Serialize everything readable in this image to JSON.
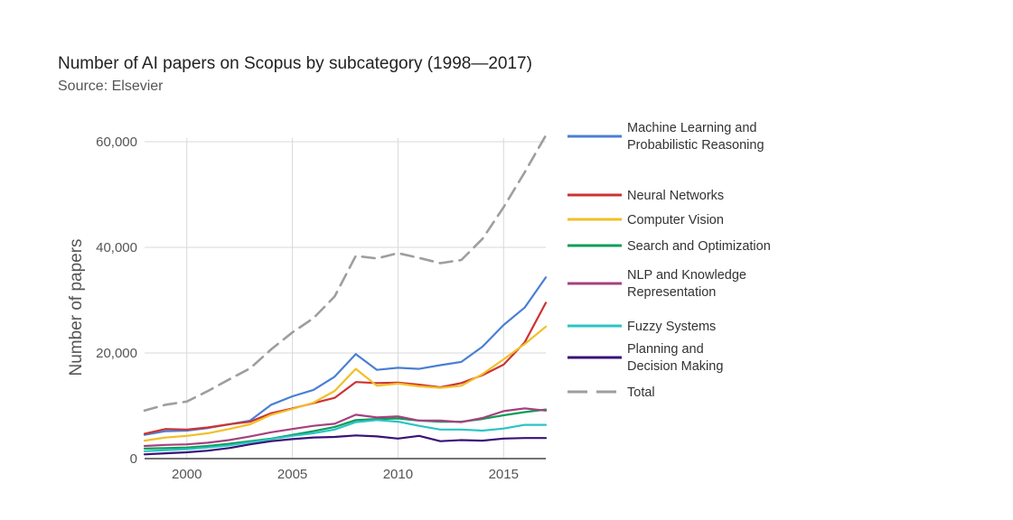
{
  "chart_data": {
    "type": "line",
    "title": "Number of AI papers on Scopus by subcategory (1998—2017)",
    "subtitle": "Source: Elsevier",
    "xlabel": "",
    "ylabel": "Number of papers",
    "xlim": [
      1998,
      2017
    ],
    "ylim": [
      0,
      60000
    ],
    "xticks": [
      "2000",
      "2005",
      "2010",
      "2015"
    ],
    "yticks": [
      "0",
      "20,000",
      "40,000",
      "60,000"
    ],
    "grid": true,
    "legend_position": "right",
    "x": [
      1998,
      1999,
      2000,
      2001,
      2002,
      2003,
      2004,
      2005,
      2006,
      2007,
      2008,
      2009,
      2010,
      2011,
      2012,
      2013,
      2014,
      2015,
      2016,
      2017
    ],
    "series": [
      {
        "name": "Machine Learning and Probabilistic Reasoning",
        "color": "#4a7fd3",
        "dash": false,
        "values": [
          4500,
          5200,
          5300,
          5800,
          6500,
          7200,
          10200,
          11800,
          13000,
          15500,
          19800,
          16800,
          17200,
          17000,
          17700,
          18300,
          21200,
          25300,
          28600,
          34300
        ]
      },
      {
        "name": "Neural Networks",
        "color": "#cc3333",
        "dash": false,
        "values": [
          4700,
          5600,
          5500,
          5900,
          6500,
          7000,
          8600,
          9500,
          10500,
          11500,
          14500,
          14300,
          14400,
          14000,
          13500,
          14300,
          15800,
          17800,
          22000,
          29500
        ]
      },
      {
        "name": "Computer Vision",
        "color": "#f2bf27",
        "dash": false,
        "values": [
          3400,
          4000,
          4300,
          4800,
          5600,
          6500,
          8300,
          9400,
          10600,
          12800,
          17000,
          13800,
          14200,
          13700,
          13400,
          13800,
          16000,
          18800,
          21700,
          25000
        ]
      },
      {
        "name": "Search and Optimization",
        "color": "#0f9d58",
        "dash": false,
        "values": [
          1900,
          2000,
          2100,
          2400,
          2800,
          3300,
          3800,
          4500,
          5200,
          6000,
          7300,
          7500,
          7600,
          7200,
          7000,
          7000,
          7500,
          8200,
          8800,
          9300
        ]
      },
      {
        "name": "NLP and Knowledge Representation",
        "color": "#a5417f",
        "dash": false,
        "values": [
          2400,
          2600,
          2700,
          3000,
          3500,
          4200,
          5000,
          5600,
          6200,
          6600,
          8300,
          7800,
          8000,
          7200,
          7200,
          6900,
          7700,
          9000,
          9500,
          9100
        ]
      },
      {
        "name": "Fuzzy Systems",
        "color": "#2ac4c4",
        "dash": false,
        "values": [
          1400,
          1600,
          1800,
          2100,
          2500,
          3100,
          3700,
          4300,
          4800,
          5500,
          6900,
          7300,
          7000,
          6200,
          5500,
          5500,
          5300,
          5700,
          6400,
          6400
        ]
      },
      {
        "name": "Planning and Decision Making",
        "color": "#3a1278",
        "dash": false,
        "values": [
          800,
          1000,
          1200,
          1500,
          2000,
          2700,
          3300,
          3700,
          4000,
          4100,
          4400,
          4200,
          3800,
          4300,
          3300,
          3500,
          3400,
          3800,
          3900,
          3900
        ]
      },
      {
        "name": "Total",
        "color": "#9e9e9e",
        "dash": true,
        "values": [
          9100,
          10200,
          10800,
          12800,
          15000,
          17100,
          20700,
          23900,
          26600,
          30700,
          38400,
          37900,
          38900,
          38000,
          37000,
          37600,
          41600,
          47600,
          54200,
          61200
        ]
      }
    ]
  }
}
